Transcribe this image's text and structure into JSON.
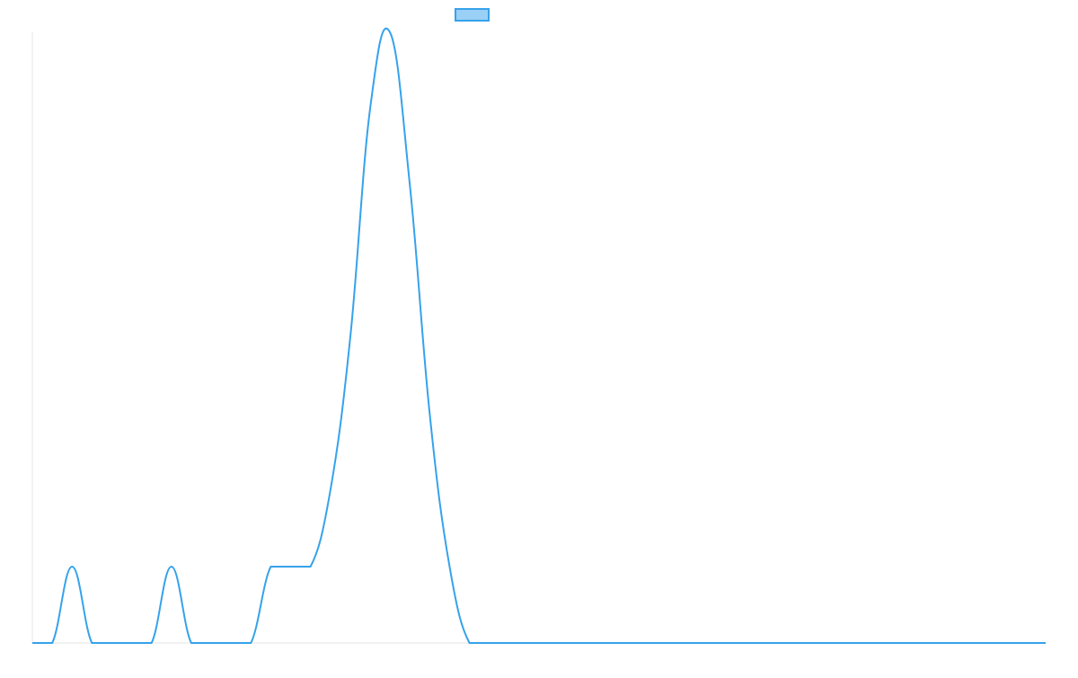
{
  "chart_data": {
    "type": "line",
    "x": [
      0,
      1,
      2,
      3,
      4,
      5,
      6,
      7,
      8,
      9,
      10,
      11,
      12,
      13,
      14,
      15,
      16,
      17,
      18,
      19,
      20,
      21,
      22,
      23,
      24,
      25,
      26,
      27,
      28,
      29,
      30,
      31,
      32,
      33,
      34,
      35,
      36,
      37,
      38,
      39,
      40,
      41,
      42,
      43,
      44,
      45,
      46,
      47,
      48,
      49,
      50,
      51
    ],
    "series": [
      {
        "name": "",
        "color": "#36a2eb",
        "values": [
          0,
          0,
          1,
          0,
          0,
          0,
          0,
          1,
          0,
          0,
          0,
          0,
          1,
          1,
          1,
          2,
          4,
          7,
          8,
          6,
          3,
          1,
          0,
          0,
          0,
          0,
          0,
          0,
          0,
          0,
          0,
          0,
          0,
          0,
          0,
          0,
          0,
          0,
          0,
          0,
          0,
          0,
          0,
          0,
          0,
          0,
          0,
          0,
          0,
          0,
          0,
          0
        ]
      }
    ],
    "ylim": [
      0,
      8
    ],
    "grid": false,
    "legend": "top-center",
    "xlabel": "",
    "ylabel": "",
    "title": ""
  }
}
